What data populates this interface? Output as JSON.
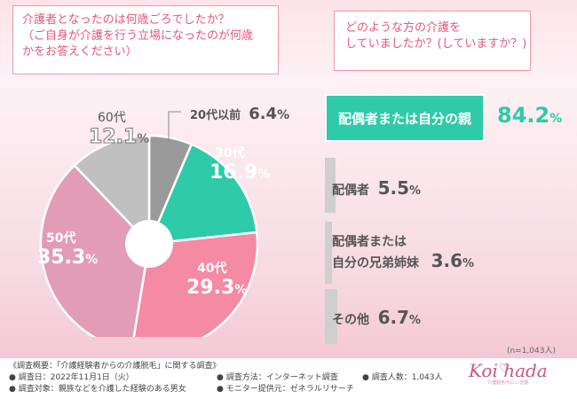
{
  "q1": {
    "line1": "介護者となったのは何歳ごろでしたか？",
    "line2": "（ご自身が介護を行う立場になったのが何歳",
    "line3": "かをお答えください）"
  },
  "q2": {
    "line1": "どのような方の介護を",
    "line2": "していましたか？(していますか？)"
  },
  "chart_data": [
    {
      "type": "pie",
      "title": "介護者となったのは何歳ごろでしたか？",
      "categories": [
        "20代以前",
        "30代",
        "40代",
        "50代",
        "60代"
      ],
      "values": [
        6.4,
        16.9,
        29.3,
        35.3,
        12.1
      ],
      "colors": [
        "#9a9a9a",
        "#2fcaa8",
        "#f48aa3",
        "#e39cb5",
        "#c0c0c0"
      ],
      "unit": "%",
      "donut": true
    },
    {
      "type": "bar",
      "title": "どのような方の介護をしていましたか？(していますか？)",
      "categories": [
        "配偶者または自分の親",
        "配偶者",
        "配偶者または自分の兄弟姉妹",
        "その他"
      ],
      "values": [
        84.2,
        5.5,
        3.6,
        6.7
      ],
      "unit": "%",
      "highlight_color": "#2fcaa8",
      "bar_color": "#cfcfcf"
    }
  ],
  "labels": {
    "age20": {
      "name": "20代以前",
      "pct": "6.4",
      "unit": "%"
    },
    "age30": {
      "name": "30代",
      "pct": "16.9",
      "unit": "%"
    },
    "age40": {
      "name": "40代",
      "pct": "29.3",
      "unit": "%"
    },
    "age50": {
      "name": "50代",
      "pct": "35.3",
      "unit": "%"
    },
    "age60": {
      "name": "60代",
      "pct": "12.1",
      "unit": "%"
    }
  },
  "ranking": {
    "top": {
      "line": "配偶者または自分の親",
      "pct": "84.2",
      "unit": "%"
    },
    "r2": {
      "line": "配偶者",
      "pct": "5.5",
      "unit": "%"
    },
    "r3": {
      "line1": "配偶者または",
      "line2": "自分の兄弟姉妹",
      "pct": "3.6",
      "unit": "%"
    },
    "r4": {
      "line": "その他",
      "pct": "6.7",
      "unit": "%"
    }
  },
  "respondents": "(n=1,043人)",
  "footer": {
    "overview": "《調査概要：「介護経験者からの介護脱毛」に関する調査》",
    "date": "● 調査日：2022年11月1日（火）",
    "method": "● 調査方法：インターネット調査",
    "count": "● 調査人数：1,043人",
    "target": "● 調査対象：親族などを介護した経験のある男女",
    "provider": "● モニター提供元：ゼネラルリサーチ"
  },
  "brand": {
    "name": "Koi hada",
    "heart": "♡",
    "sub": "介護脱毛サロン 恋肌"
  }
}
